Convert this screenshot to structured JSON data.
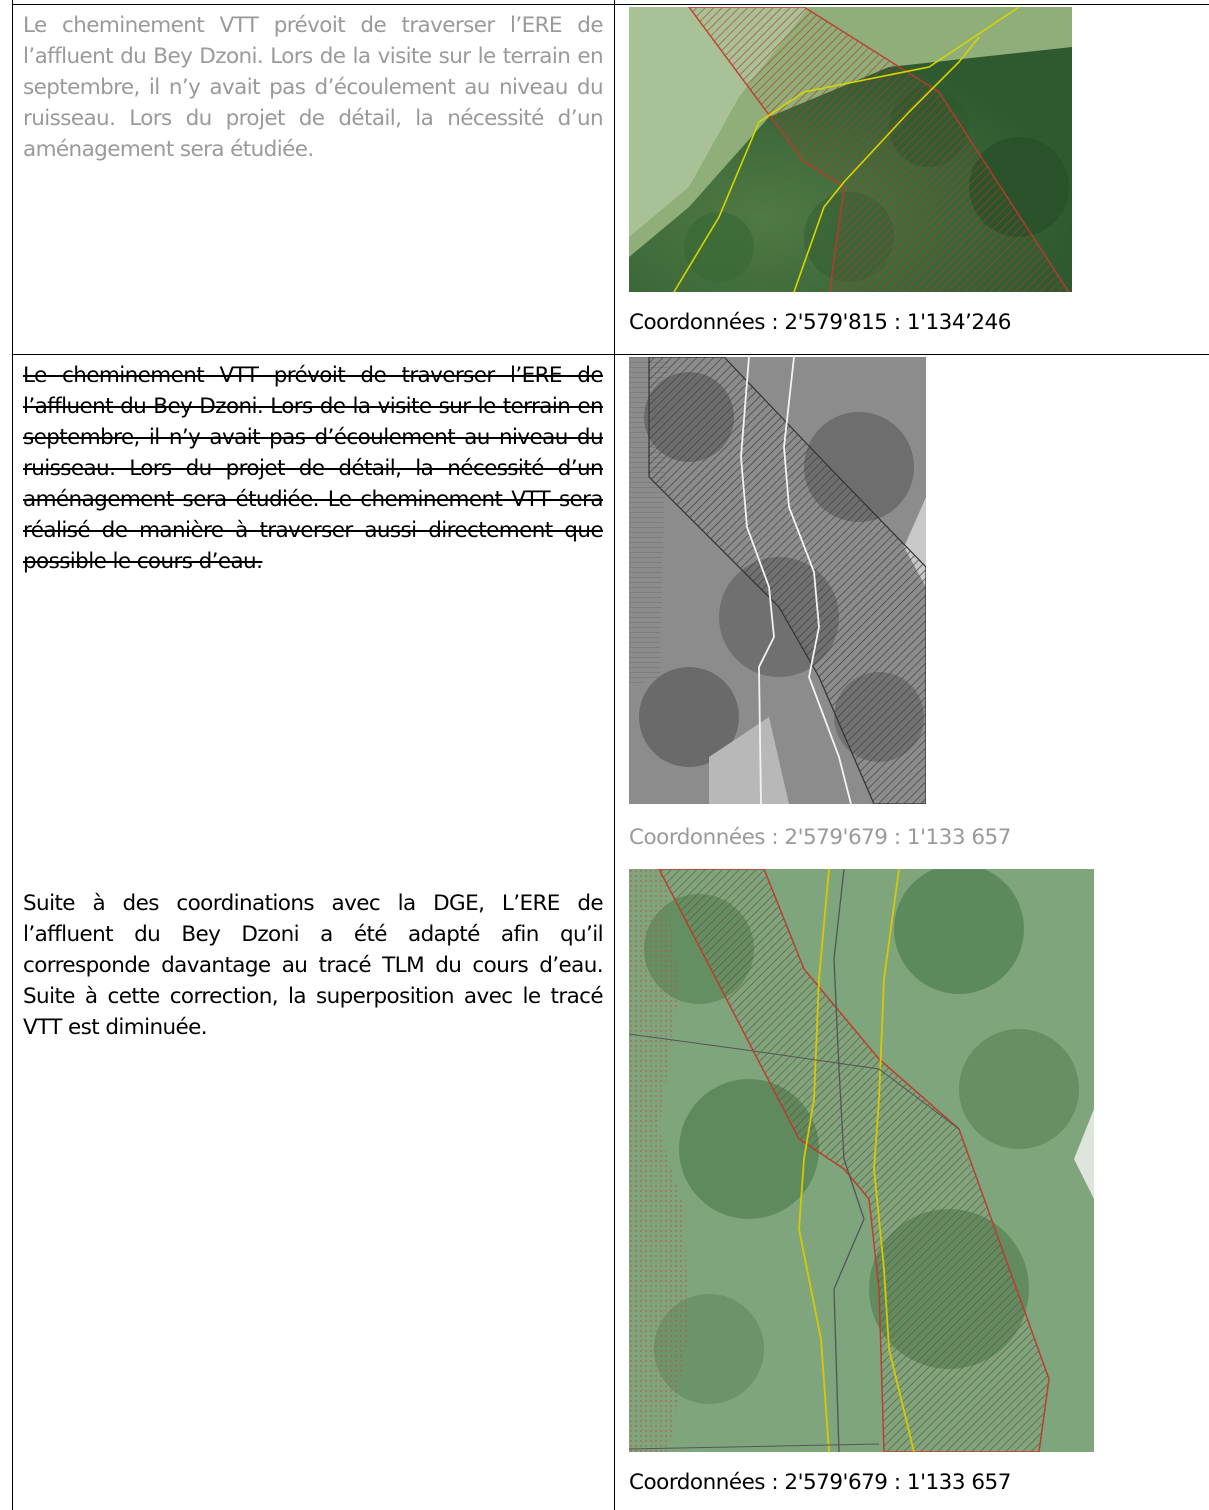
{
  "row1": {
    "text": "Le cheminement VTT prévoit de traverser l’ERE de l’affluent du Bey Dzoni. Lors de la visite sur le terrain en septembre, il n’y avait pas d’écoulement au niveau du ruisseau. Lors du projet de détail, la nécessité d’un aménagement sera étudiée.",
    "caption": "Coordonnées : 2'579'815 : 1'134’246"
  },
  "row2": {
    "struck_text": "Le cheminement VTT prévoit de traverser l’ERE de l’affluent du Bey Dzoni. Lors de la visite sur le terrain en septembre, il n’y avait pas d’écoulement au niveau du ruisseau. Lors du projet de détail, la nécessité d’un aménagement sera étudiée. Le cheminement VTT sera réalisé de manière à traverser aussi directement que possible le cours d’eau.",
    "caption_old": "Coordonnées : 2'579'679 : 1'133 657",
    "new_text": "Suite à des coordinations avec la DGE, L’ERE de l’affluent du Bey Dzoni a été adapté afin qu’il corresponde davantage au tracé TLM du cours d’eau. Suite à cette correction, la superposition avec le tracé VTT est diminuée.",
    "caption_new": "Coordonnées : 2'579'679 : 1'133 657"
  },
  "colors": {
    "ere_outline": "#c0392b",
    "path_yellow": "#d8d400",
    "path_white": "#f2f2f2",
    "path_grey": "#555555"
  }
}
